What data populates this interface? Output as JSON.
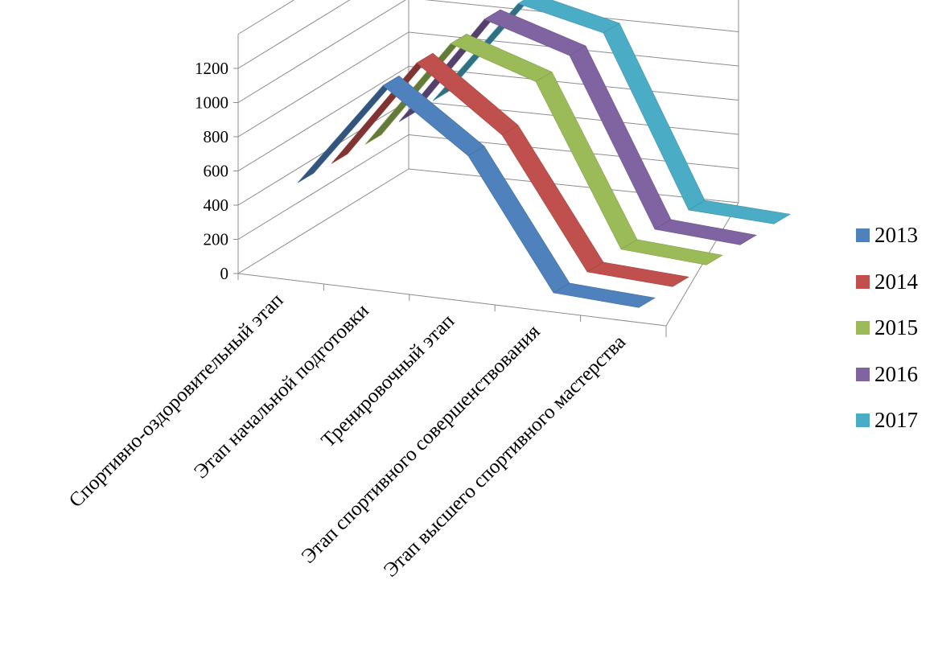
{
  "chart_data": {
    "type": "line",
    "style": "3d-ribbon",
    "categories": [
      "Спортивно-оздоровительный этап",
      "Этап начальной подготовки",
      "Тренировочный этап",
      "Этап спортивного совершенствования",
      "Этап высшего спортивного мастерства"
    ],
    "series": [
      {
        "name": "2013",
        "color": "#4F81BD",
        "values": [
          500,
          1130,
          780,
          40,
          15
        ]
      },
      {
        "name": "2014",
        "color": "#C0504D",
        "values": [
          490,
          1140,
          780,
          40,
          15
        ]
      },
      {
        "name": "2015",
        "color": "#9BBB59",
        "values": [
          480,
          1130,
          970,
          50,
          20
        ]
      },
      {
        "name": "2016",
        "color": "#8064A2",
        "values": [
          490,
          1150,
          1000,
          45,
          15
        ]
      },
      {
        "name": "2017",
        "color": "#4BACC6",
        "values": [
          490,
          1120,
          1010,
          35,
          15
        ]
      }
    ],
    "y_ticks": [
      "0",
      "200",
      "400",
      "600",
      "800",
      "1000",
      "1200"
    ],
    "ylim": [
      0,
      1400
    ],
    "grid": true,
    "legend_position": "right"
  }
}
